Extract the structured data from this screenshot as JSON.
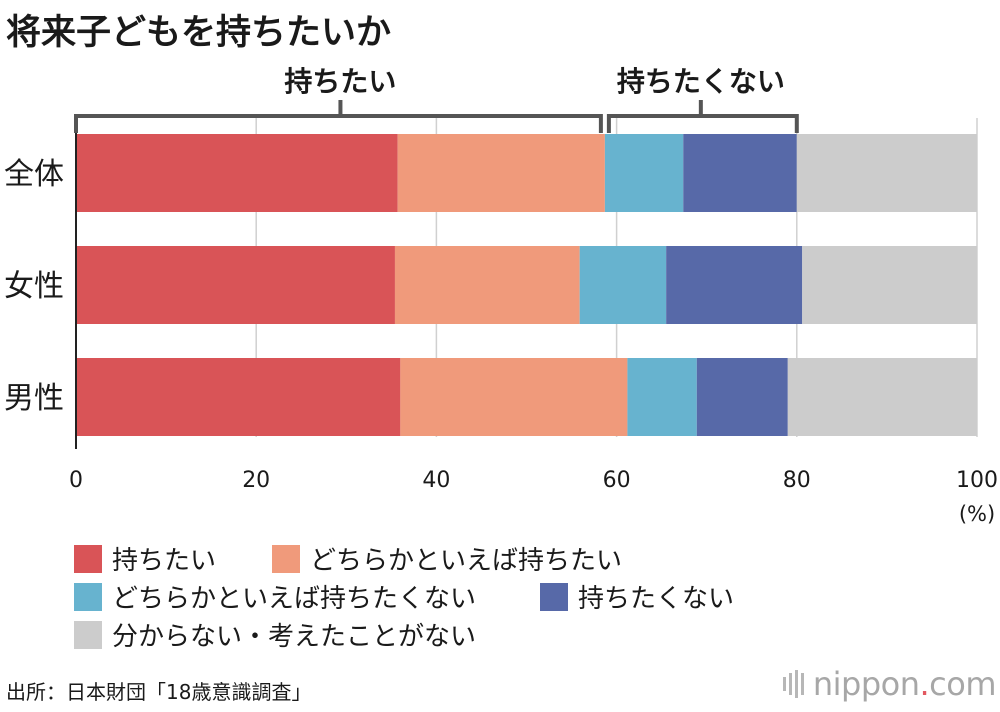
{
  "title": "将来子どもを持ちたいか",
  "chart_data": {
    "type": "bar",
    "orientation": "horizontal",
    "stacked": true,
    "categories": [
      "全体",
      "女性",
      "男性"
    ],
    "series": [
      {
        "name": "持ちたい",
        "color": "#d95457",
        "values": [
          35.7,
          35.4,
          36.0
        ]
      },
      {
        "name": "どちらかといえば持ちたい",
        "color": "#f09a7b",
        "values": [
          23.0,
          20.5,
          25.2
        ]
      },
      {
        "name": "どちらかといえば持ちたくない",
        "color": "#67b3cf",
        "values": [
          8.7,
          9.6,
          7.7
        ]
      },
      {
        "name": "持ちたくない",
        "color": "#5769a8",
        "values": [
          12.6,
          15.1,
          10.1
        ]
      },
      {
        "name": "分からない・考えたことがない",
        "color": "#cccccc",
        "values": [
          20.0,
          19.4,
          21.0
        ]
      }
    ],
    "xlim": [
      0,
      100
    ],
    "xticks": [
      "0",
      "20",
      "40",
      "60",
      "80",
      "100"
    ],
    "xunit": "(%)",
    "grid": true,
    "legend_position": "bottom",
    "brackets": [
      {
        "label": "持ちたい",
        "from": 0,
        "to": 58.7
      },
      {
        "label": "持ちたくない",
        "from": 58.7,
        "to": 80.0
      }
    ]
  },
  "legend": {
    "items": [
      {
        "label": "持ちたい",
        "color": "#d95457"
      },
      {
        "label": "どちらかといえば持ちたい",
        "color": "#f09a7b"
      },
      {
        "label": "どちらかといえば持ちたくない",
        "color": "#67b3cf"
      },
      {
        "label": "持ちたくない",
        "color": "#5769a8"
      },
      {
        "label": "分からない・考えたことがない",
        "color": "#cccccc"
      }
    ]
  },
  "source": "出所：日本財団「18歳意識調査」",
  "logo": {
    "name": "nippon",
    "dot": ".",
    "tld": "com"
  }
}
